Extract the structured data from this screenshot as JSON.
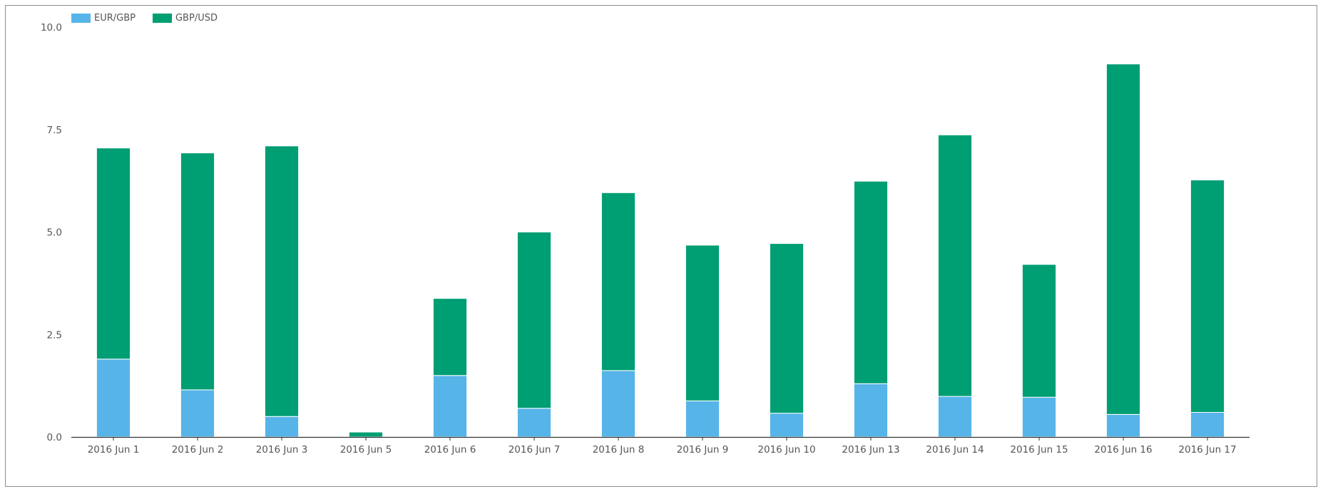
{
  "colors": {
    "eur_gbp": "#56b4e9",
    "gbp_usd": "#009e73",
    "axis": "#333333",
    "text": "#555555"
  },
  "chart_data": {
    "type": "bar",
    "stacked": true,
    "categories": [
      "2016 Jun 1",
      "2016 Jun 2",
      "2016 Jun 3",
      "2016 Jun 5",
      "2016 Jun 6",
      "2016 Jun 7",
      "2016 Jun 8",
      "2016 Jun 9",
      "2016 Jun 10",
      "2016 Jun 13",
      "2016 Jun 14",
      "2016 Jun 15",
      "2016 Jun 16",
      "2016 Jun 17"
    ],
    "series": [
      {
        "name": "EUR/GBP",
        "color": "#56b4e9",
        "values": [
          1.9,
          1.15,
          0.5,
          0.0,
          1.5,
          0.7,
          1.62,
          0.88,
          0.58,
          1.3,
          0.99,
          0.97,
          0.55,
          0.6
        ]
      },
      {
        "name": "GBP/USD",
        "color": "#009e73",
        "values": [
          5.15,
          5.78,
          6.6,
          0.12,
          1.88,
          4.3,
          4.34,
          3.8,
          4.14,
          4.94,
          6.38,
          3.24,
          8.55,
          5.67
        ]
      }
    ],
    "yticks": [
      "0.0",
      "2.5",
      "5.0",
      "7.5",
      "10.0"
    ],
    "ylim": [
      0,
      10
    ],
    "grid": false,
    "legend_position": "top-left",
    "title": "",
    "xlabel": "",
    "ylabel": ""
  }
}
